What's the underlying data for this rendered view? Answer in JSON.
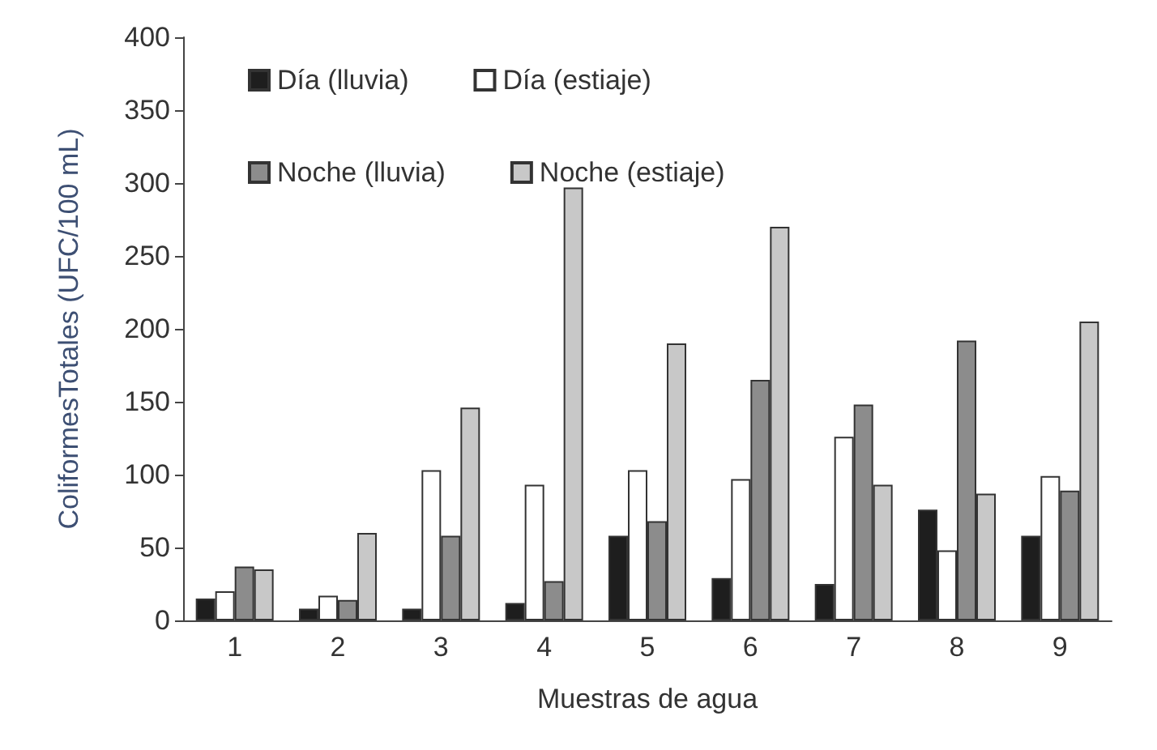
{
  "chart_data": {
    "type": "bar",
    "xlabel": "Muestras de agua",
    "ylabel": "ColiformesTotales (UFC/100 mL)",
    "categories": [
      "1",
      "2",
      "3",
      "4",
      "5",
      "6",
      "7",
      "8",
      "9"
    ],
    "ylim": [
      0,
      400
    ],
    "yticks": [
      0,
      50,
      100,
      150,
      200,
      250,
      300,
      350,
      400
    ],
    "grid": false,
    "legend": "top left",
    "series": [
      {
        "name": "Día (lluvia)",
        "color": "#1e1e1e",
        "values": [
          15,
          8,
          8,
          12,
          58,
          29,
          25,
          76,
          58
        ]
      },
      {
        "name": "Día (estiaje)",
        "color": "#ffffff",
        "values": [
          20,
          17,
          103,
          93,
          103,
          97,
          126,
          48,
          99
        ]
      },
      {
        "name": "Noche (lluvia)",
        "color": "#8c8c8c",
        "values": [
          37,
          14,
          58,
          27,
          68,
          165,
          148,
          192,
          89
        ]
      },
      {
        "name": "Noche (estiaje)",
        "color": "#c8c8c8",
        "values": [
          35,
          60,
          146,
          297,
          190,
          270,
          93,
          87,
          205
        ]
      }
    ]
  }
}
